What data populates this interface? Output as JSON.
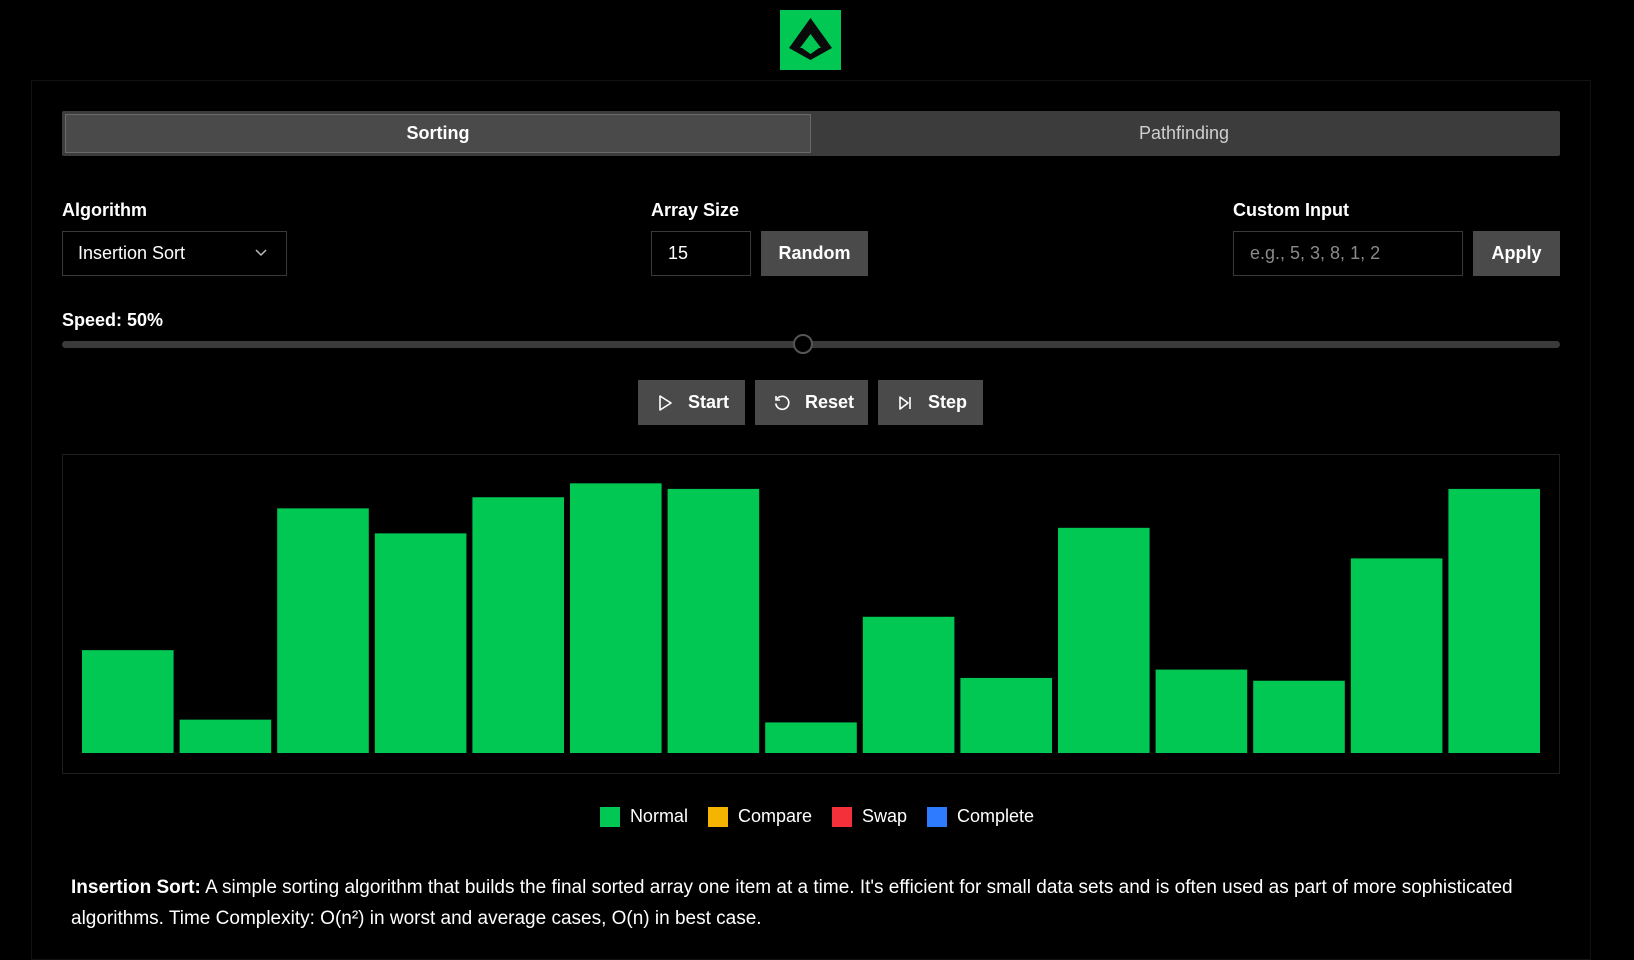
{
  "tabs": [
    {
      "label": "Sorting",
      "active": true
    },
    {
      "label": "Pathfinding",
      "active": false
    }
  ],
  "controls": {
    "algorithm_label": "Algorithm",
    "algorithm_value": "Insertion Sort",
    "array_size_label": "Array Size",
    "array_size_value": "15",
    "random_label": "Random",
    "custom_input_label": "Custom Input",
    "custom_input_placeholder": "e.g., 5, 3, 8, 1, 2",
    "apply_label": "Apply",
    "speed_label": "Speed: 50%",
    "speed_value": 50
  },
  "actions": {
    "start_label": "Start",
    "reset_label": "Reset",
    "step_label": "Step"
  },
  "chart_data": {
    "type": "bar",
    "values": [
      37,
      12,
      88,
      79,
      92,
      97,
      95,
      11,
      49,
      27,
      81,
      30,
      26,
      70,
      95
    ],
    "ylim": [
      0,
      100
    ],
    "color": "#00c853"
  },
  "legend": [
    {
      "label": "Normal",
      "color": "#00c853"
    },
    {
      "label": "Compare",
      "color": "#f5b400"
    },
    {
      "label": "Swap",
      "color": "#f4303a"
    },
    {
      "label": "Complete",
      "color": "#2f7bff"
    }
  ],
  "description": {
    "title": "Insertion Sort:",
    "text": " A simple sorting algorithm that builds the final sorted array one item at a time. It's efficient for small data sets and is often used as part of more sophisticated algorithms. Time Complexity: O(n²) in worst and average cases, O(n) in best case."
  },
  "colors": {
    "accent": "#00c853",
    "panel": "#3c3c3c",
    "button": "#4a4a4a"
  }
}
